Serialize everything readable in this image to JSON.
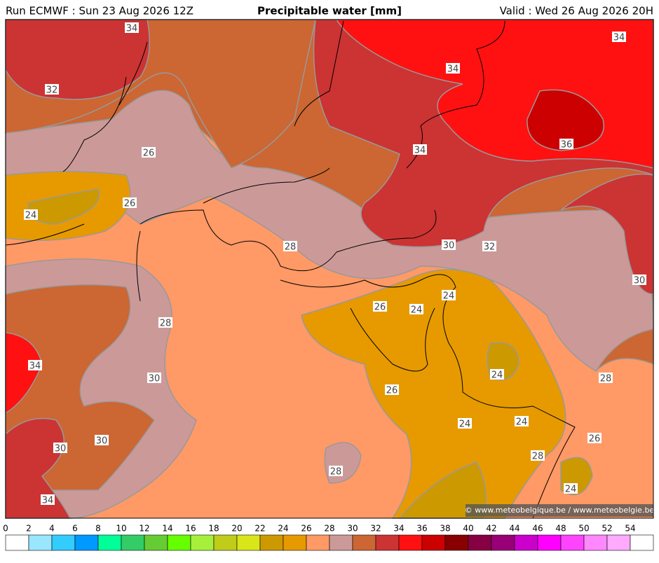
{
  "header": {
    "run": "Run ECMWF : Sun 23 Aug 2026 12Z",
    "title": "Precipitable water [mm]",
    "valid": "Valid : Wed 26 Aug 2026 20H"
  },
  "contour_labels": [
    34,
    32,
    26,
    26,
    24,
    34,
    34,
    36,
    34,
    28,
    30,
    32,
    30,
    24,
    26,
    24,
    28,
    34,
    30,
    24,
    28,
    26,
    24,
    24,
    26,
    30,
    30,
    28,
    28,
    24,
    34
  ],
  "copyright": "© www.meteobelgique.be / www.meteobelgie.be",
  "colorbar": {
    "ticks": [
      0,
      2,
      4,
      6,
      8,
      10,
      12,
      14,
      16,
      18,
      20,
      22,
      24,
      26,
      28,
      30,
      32,
      34,
      36,
      38,
      40,
      42,
      44,
      46,
      48,
      50,
      52,
      54
    ],
    "colors": [
      "#ffffff",
      "#99e6ff",
      "#33ccff",
      "#0099ff",
      "#00ff99",
      "#33cc66",
      "#66cc33",
      "#66ff00",
      "#a6f03c",
      "#bfcc1a",
      "#d9e619",
      "#cc9900",
      "#e69a00",
      "#ff9966",
      "#cc9999",
      "#cc6633",
      "#cc3333",
      "#ff1111",
      "#cc0000",
      "#880000",
      "#880044",
      "#990077",
      "#cc00cc",
      "#ff00ff",
      "#ff44ff",
      "#ff88ff",
      "#ffaaff",
      "#ffffff"
    ]
  }
}
